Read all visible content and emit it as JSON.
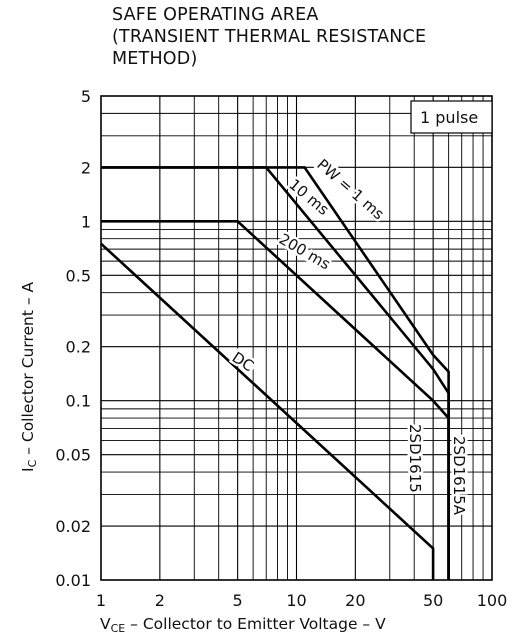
{
  "chart_data": {
    "type": "line",
    "title": "SAFE OPERATING AREA",
    "subtitle_lines": [
      "(TRANSIENT THERMAL RESISTANCE",
      "METHOD)"
    ],
    "xlabel_prefix": "V",
    "xlabel_sub": "CE",
    "xlabel_rest": " – Collector to Emitter Voltage – V",
    "ylabel_prefix": "I",
    "ylabel_sub": "C",
    "ylabel_rest": " – Collector Current – A",
    "x_scale": "log",
    "y_scale": "log",
    "xlim": [
      1,
      100
    ],
    "ylim": [
      0.01,
      5
    ],
    "x_ticks": [
      1,
      2,
      5,
      10,
      20,
      50,
      100
    ],
    "y_ticks": [
      0.01,
      0.02,
      0.05,
      0.1,
      0.2,
      0.5,
      1,
      2,
      5
    ],
    "grid": true,
    "legend_box": "1 pulse",
    "series": [
      {
        "name": "PW = 1 ms",
        "points": [
          [
            1,
            2
          ],
          [
            11,
            2
          ],
          [
            50,
            0.18
          ],
          [
            60,
            0.145
          ],
          [
            60,
            0.01
          ]
        ]
      },
      {
        "name": "10 ms",
        "points": [
          [
            1,
            2
          ],
          [
            7,
            2
          ],
          [
            50,
            0.15
          ],
          [
            60,
            0.11
          ],
          [
            60,
            0.01
          ]
        ]
      },
      {
        "name": "200 ms",
        "points": [
          [
            1,
            1
          ],
          [
            5,
            1
          ],
          [
            50,
            0.1
          ],
          [
            60,
            0.08
          ],
          [
            60,
            0.01
          ]
        ]
      },
      {
        "name": "DC",
        "points": [
          [
            1,
            0.75
          ],
          [
            50,
            0.015
          ],
          [
            50,
            0.01
          ]
        ]
      }
    ],
    "boundary_labels": [
      "2SD1615",
      "2SD1615A"
    ],
    "boundary_x": [
      50,
      60
    ]
  }
}
